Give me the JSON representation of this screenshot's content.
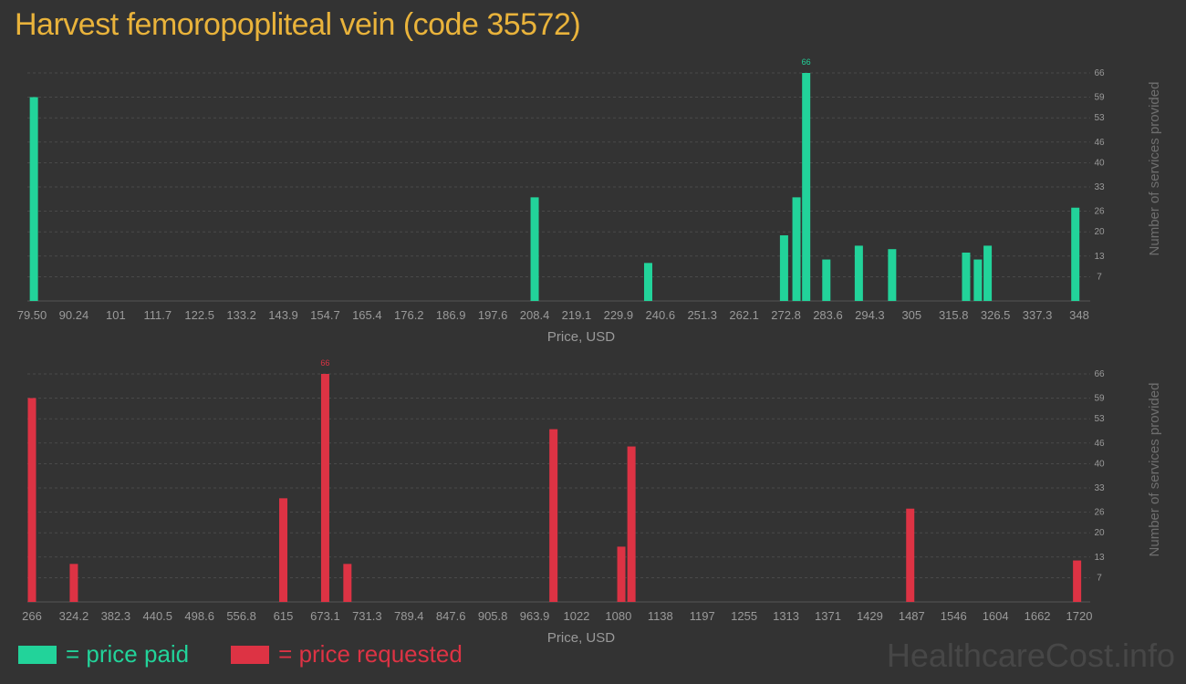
{
  "title": "Harvest femoropopliteal vein (code 35572)",
  "legend": {
    "paid_label": "= price paid",
    "requested_label": "= price requested"
  },
  "watermark": "HealthcareCost.info",
  "colors": {
    "paid": "#22d39a",
    "requested": "#dd3344",
    "axis_text": "#9a9a9a",
    "grid": "#4a4a4a",
    "title": "#e9b33b"
  },
  "chart_data": [
    {
      "type": "bar",
      "name": "price-paid",
      "xlabel": "Price, USD",
      "ylabel": "Number of services provided",
      "x_tick_labels": [
        "79.50",
        "90.24",
        "101",
        "111.7",
        "122.5",
        "133.2",
        "143.9",
        "154.7",
        "165.4",
        "176.2",
        "186.9",
        "197.6",
        "208.4",
        "219.1",
        "229.9",
        "240.6",
        "251.3",
        "262.1",
        "272.8",
        "283.6",
        "294.3",
        "305",
        "315.8",
        "326.5",
        "337.3",
        "348"
      ],
      "x_tick_values": [
        79.5,
        90.24,
        101,
        111.7,
        122.5,
        133.2,
        143.9,
        154.7,
        165.4,
        176.2,
        186.9,
        197.6,
        208.4,
        219.1,
        229.9,
        240.6,
        251.3,
        262.1,
        272.8,
        283.6,
        294.3,
        305,
        315.8,
        326.5,
        337.3,
        348
      ],
      "y_ticks": [
        7,
        13,
        20,
        26,
        33,
        40,
        46,
        53,
        59,
        66
      ],
      "ylim": [
        0,
        66
      ],
      "xlim": [
        79.5,
        348
      ],
      "max_label": "66",
      "bars": [
        {
          "x": 80.0,
          "y": 59
        },
        {
          "x": 208.4,
          "y": 30
        },
        {
          "x": 237.5,
          "y": 11
        },
        {
          "x": 272.3,
          "y": 19
        },
        {
          "x": 275.5,
          "y": 30
        },
        {
          "x": 278.0,
          "y": 66
        },
        {
          "x": 283.2,
          "y": 12
        },
        {
          "x": 291.5,
          "y": 16
        },
        {
          "x": 300.0,
          "y": 15
        },
        {
          "x": 319.0,
          "y": 14
        },
        {
          "x": 322.0,
          "y": 12
        },
        {
          "x": 324.5,
          "y": 16
        },
        {
          "x": 347.0,
          "y": 27
        }
      ]
    },
    {
      "type": "bar",
      "name": "price-requested",
      "xlabel": "Price, USD",
      "ylabel": "Number of services provided",
      "x_tick_labels": [
        "266",
        "324.2",
        "382.3",
        "440.5",
        "498.6",
        "556.8",
        "615",
        "673.1",
        "731.3",
        "789.4",
        "847.6",
        "905.8",
        "963.9",
        "1022",
        "1080",
        "1138",
        "1197",
        "1255",
        "1313",
        "1371",
        "1429",
        "1487",
        "1546",
        "1604",
        "1662",
        "1720"
      ],
      "x_tick_values": [
        266,
        324.2,
        382.3,
        440.5,
        498.6,
        556.8,
        615,
        673.1,
        731.3,
        789.4,
        847.6,
        905.8,
        963.9,
        1022,
        1080,
        1138,
        1197,
        1255,
        1313,
        1371,
        1429,
        1487,
        1546,
        1604,
        1662,
        1720
      ],
      "y_ticks": [
        7,
        13,
        20,
        26,
        33,
        40,
        46,
        53,
        59,
        66
      ],
      "ylim": [
        0,
        66
      ],
      "xlim": [
        266,
        1720
      ],
      "max_label": "66",
      "bars": [
        {
          "x": 266,
          "y": 59
        },
        {
          "x": 324.2,
          "y": 11
        },
        {
          "x": 615,
          "y": 30
        },
        {
          "x": 673.1,
          "y": 66
        },
        {
          "x": 704.0,
          "y": 11
        },
        {
          "x": 990.0,
          "y": 50
        },
        {
          "x": 1084.0,
          "y": 16
        },
        {
          "x": 1098.0,
          "y": 45
        },
        {
          "x": 1485.0,
          "y": 27
        },
        {
          "x": 1717.0,
          "y": 12
        }
      ]
    }
  ]
}
